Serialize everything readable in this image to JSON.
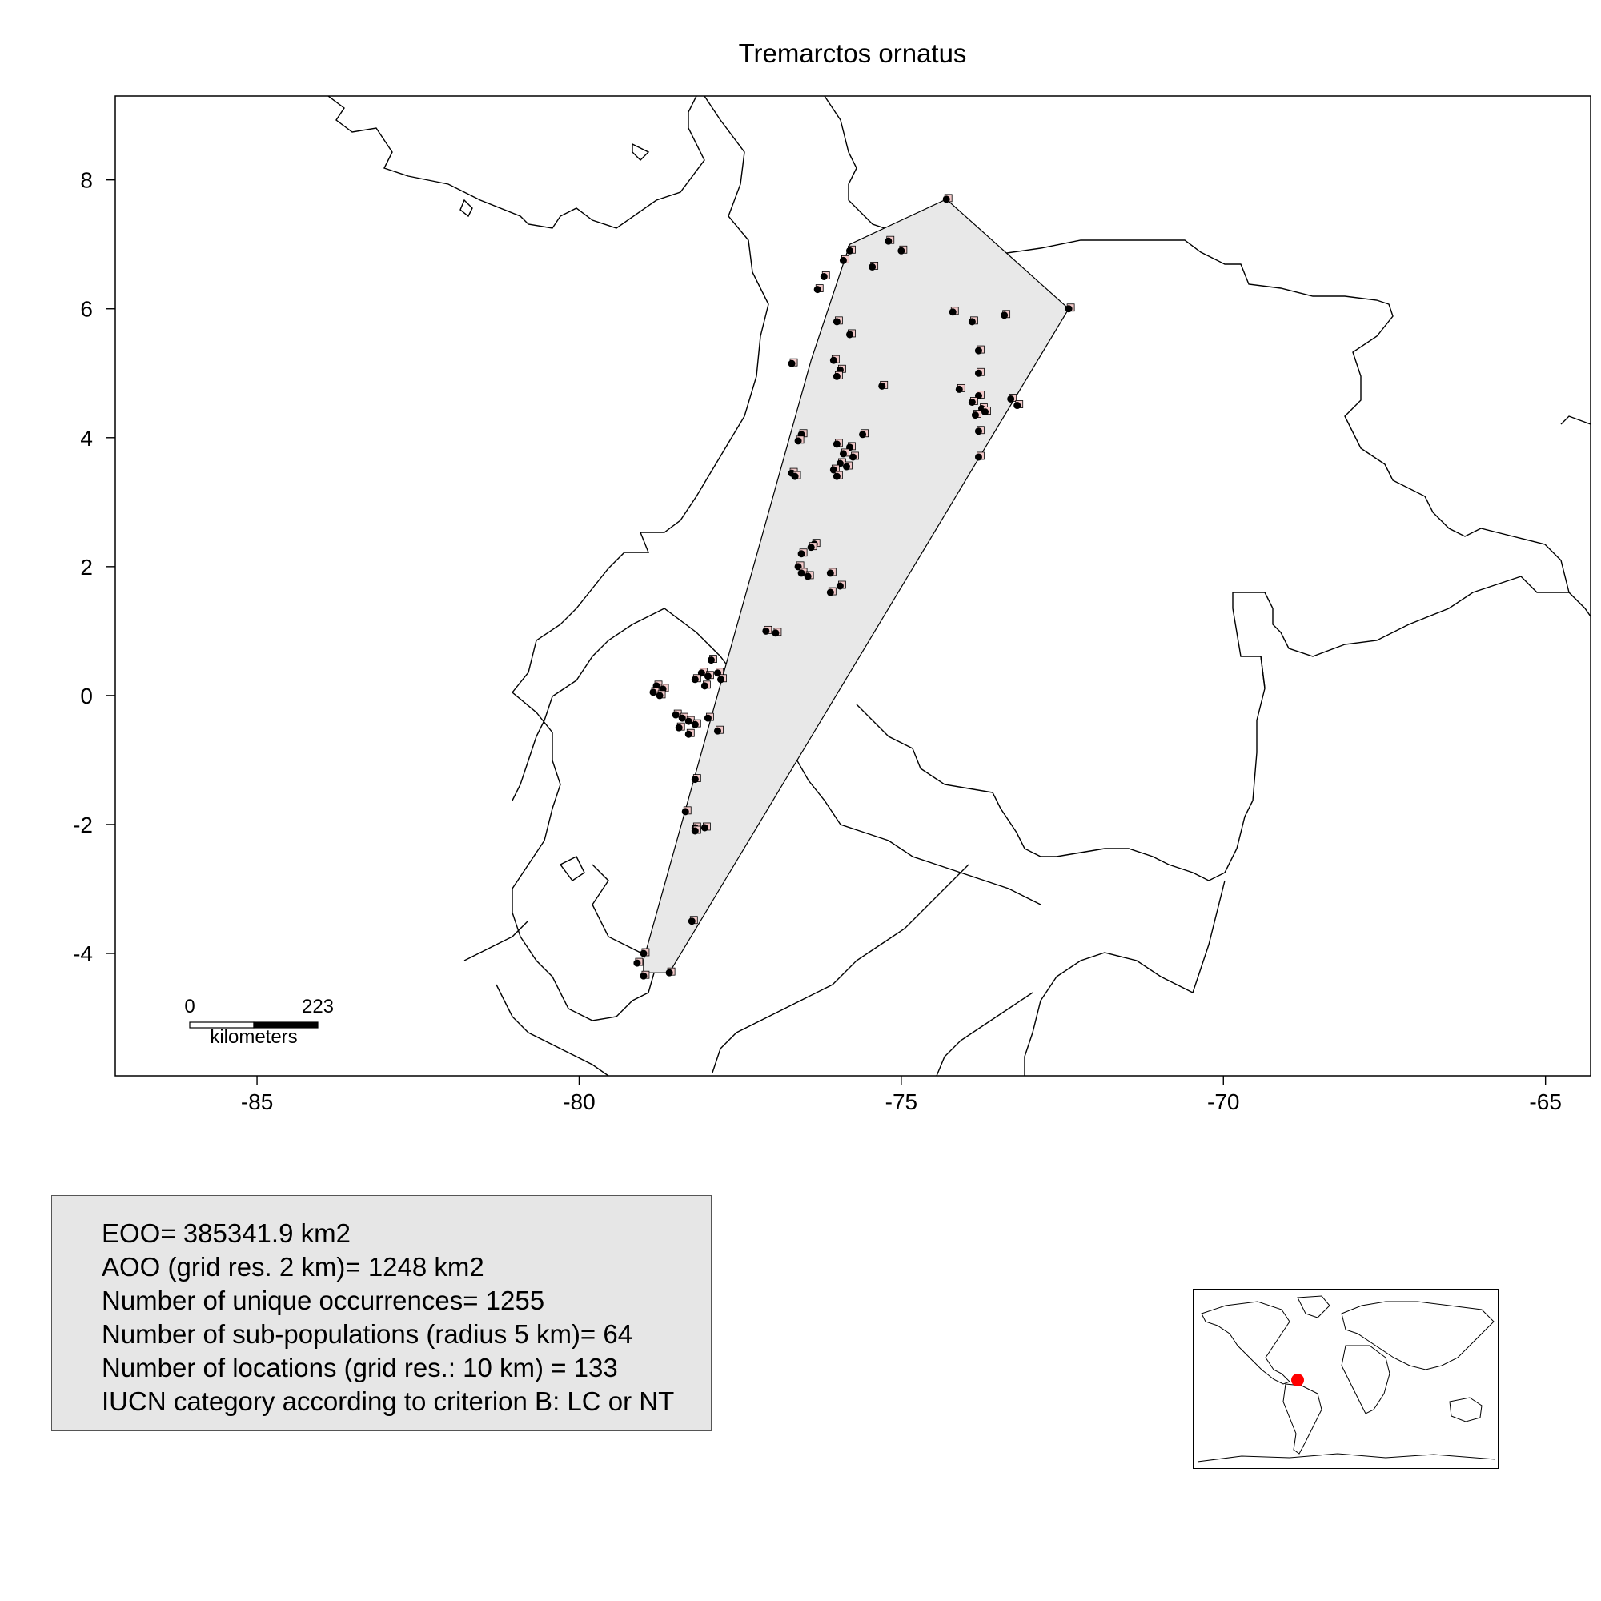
{
  "title": "Tremarctos ornatus",
  "axes": {
    "x_ticks": [
      "-85",
      "-80",
      "-75",
      "-70",
      "-65"
    ],
    "y_ticks": [
      "8",
      "6",
      "4",
      "2",
      "0",
      "-2",
      "-4"
    ],
    "xlim": [
      -87.2,
      -64.3
    ],
    "ylim": [
      -5.9,
      9.3
    ]
  },
  "scale_bar": {
    "start_label": "0",
    "end_label": "223",
    "unit_label": "kilometers"
  },
  "stats": [
    "EOO= 385341.9 km2",
    "AOO (grid res. 2 km)= 1248 km2",
    "Number of unique occurrences= 1255",
    "Number of sub-populations (radius 5 km)= 64",
    "Number of locations (grid res.: 10  km) = 133",
    "IUCN category according to criterion B: LC or NT"
  ],
  "colors": {
    "hull_fill": "#e8e8e8",
    "occurrence": "#000000",
    "aoo_cell": "#f2c9c9",
    "inset_highlight": "#ff0000",
    "stats_box": "#e6e6e6"
  },
  "chart_data": {
    "type": "scatter",
    "title": "Tremarctos ornatus",
    "xlabel": "",
    "ylabel": "",
    "xlim": [
      -87.2,
      -64.3
    ],
    "ylim": [
      -5.9,
      9.3
    ],
    "hull": [
      [
        -74.3,
        7.7
      ],
      [
        -72.4,
        6.0
      ],
      [
        -78.6,
        -4.3
      ],
      [
        -79.0,
        -4.3
      ],
      [
        -79.0,
        -4.1
      ],
      [
        -76.4,
        5.2
      ],
      [
        -75.8,
        7.0
      ]
    ],
    "points": [
      [
        -74.3,
        7.7
      ],
      [
        -72.4,
        6.0
      ],
      [
        -75.0,
        6.9
      ],
      [
        -75.2,
        7.05
      ],
      [
        -75.8,
        6.9
      ],
      [
        -75.9,
        6.75
      ],
      [
        -76.2,
        6.5
      ],
      [
        -76.3,
        6.3
      ],
      [
        -75.45,
        6.65
      ],
      [
        -74.2,
        5.95
      ],
      [
        -73.4,
        5.9
      ],
      [
        -73.9,
        5.8
      ],
      [
        -76.0,
        5.8
      ],
      [
        -75.8,
        5.6
      ],
      [
        -76.7,
        5.15
      ],
      [
        -76.05,
        5.2
      ],
      [
        -75.95,
        5.05
      ],
      [
        -76.0,
        4.95
      ],
      [
        -75.3,
        4.8
      ],
      [
        -73.8,
        5.35
      ],
      [
        -73.8,
        5.0
      ],
      [
        -74.1,
        4.75
      ],
      [
        -73.8,
        4.65
      ],
      [
        -73.9,
        4.55
      ],
      [
        -73.75,
        4.45
      ],
      [
        -73.85,
        4.35
      ],
      [
        -73.7,
        4.4
      ],
      [
        -73.3,
        4.6
      ],
      [
        -73.2,
        4.5
      ],
      [
        -73.8,
        4.1
      ],
      [
        -73.8,
        3.7
      ],
      [
        -76.55,
        4.05
      ],
      [
        -76.6,
        3.95
      ],
      [
        -75.6,
        4.05
      ],
      [
        -76.0,
        3.9
      ],
      [
        -75.8,
        3.85
      ],
      [
        -75.9,
        3.75
      ],
      [
        -75.75,
        3.7
      ],
      [
        -75.95,
        3.6
      ],
      [
        -76.05,
        3.5
      ],
      [
        -76.0,
        3.4
      ],
      [
        -75.85,
        3.55
      ],
      [
        -76.7,
        3.45
      ],
      [
        -76.65,
        3.4
      ],
      [
        -76.35,
        2.35
      ],
      [
        -76.4,
        2.3
      ],
      [
        -76.55,
        2.2
      ],
      [
        -76.6,
        2.0
      ],
      [
        -76.55,
        1.9
      ],
      [
        -76.45,
        1.85
      ],
      [
        -76.1,
        1.9
      ],
      [
        -75.95,
        1.7
      ],
      [
        -76.1,
        1.6
      ],
      [
        -77.1,
        1.0
      ],
      [
        -76.95,
        0.97
      ],
      [
        -77.95,
        0.55
      ],
      [
        -78.8,
        0.15
      ],
      [
        -78.7,
        0.1
      ],
      [
        -78.85,
        0.05
      ],
      [
        -78.75,
        0.0
      ],
      [
        -78.1,
        0.35
      ],
      [
        -78.0,
        0.3
      ],
      [
        -78.2,
        0.25
      ],
      [
        -77.85,
        0.35
      ],
      [
        -77.8,
        0.25
      ],
      [
        -78.05,
        0.15
      ],
      [
        -78.5,
        -0.3
      ],
      [
        -78.4,
        -0.35
      ],
      [
        -78.3,
        -0.4
      ],
      [
        -78.45,
        -0.5
      ],
      [
        -78.2,
        -0.45
      ],
      [
        -78.0,
        -0.35
      ],
      [
        -77.85,
        -0.55
      ],
      [
        -78.3,
        -0.6
      ],
      [
        -78.2,
        -1.3
      ],
      [
        -78.35,
        -1.8
      ],
      [
        -78.2,
        -2.05
      ],
      [
        -78.05,
        -2.05
      ],
      [
        -78.2,
        -2.1
      ],
      [
        -78.25,
        -3.5
      ],
      [
        -78.6,
        -4.3
      ],
      [
        -79.0,
        -4.35
      ],
      [
        -79.1,
        -4.15
      ],
      [
        -79.0,
        -4.0
      ]
    ]
  }
}
